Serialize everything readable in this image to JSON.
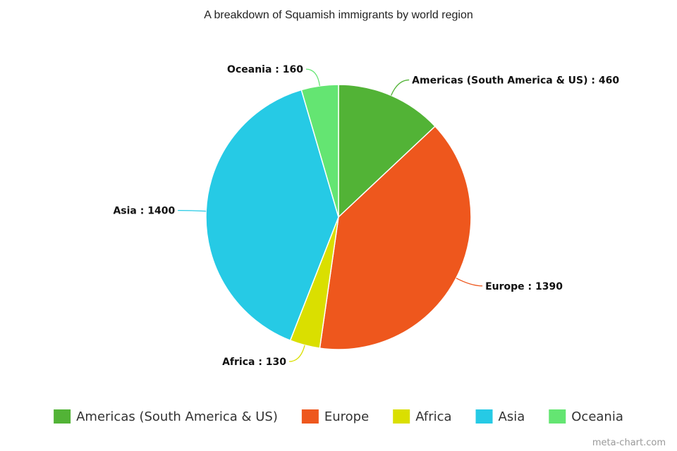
{
  "chart_data": {
    "type": "pie",
    "title": "A breakdown of Squamish immigrants by world region",
    "slices": [
      {
        "label": "Americas (South America & US)",
        "value": 460,
        "color": "#52b336"
      },
      {
        "label": "Europe",
        "value": 1390,
        "color": "#ee571d"
      },
      {
        "label": "Africa",
        "value": 130,
        "color": "#dadf00"
      },
      {
        "label": "Asia",
        "value": 1400,
        "color": "#26cae5"
      },
      {
        "label": "Oceania",
        "value": 160,
        "color": "#64e572"
      }
    ],
    "label_format": "{label} : {value}",
    "legend_position": "bottom"
  },
  "credit": "meta-chart.com"
}
